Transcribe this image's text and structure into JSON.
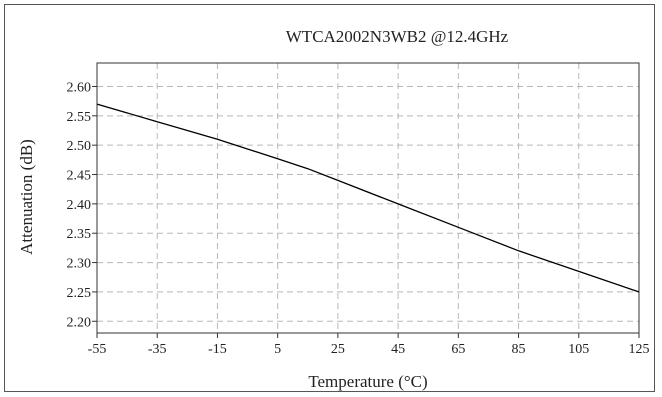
{
  "chart_data": {
    "type": "line",
    "title": "WTCA2002N3WB2 @12.4GHz",
    "xlabel": "Temperature (°C)",
    "ylabel": "Attenuation (dB)",
    "xlim": [
      -55,
      125
    ],
    "ylim": [
      2.18,
      2.64
    ],
    "xticks": [
      -55,
      -35,
      -15,
      5,
      25,
      45,
      65,
      85,
      105,
      125
    ],
    "xtick_labels": [
      "-55",
      "-35",
      "-15",
      "5",
      "25",
      "45",
      "65",
      "85",
      "105",
      "125"
    ],
    "yticks": [
      2.2,
      2.25,
      2.3,
      2.35,
      2.4,
      2.45,
      2.5,
      2.55,
      2.6
    ],
    "ytick_labels": [
      "2.20",
      "2.25",
      "2.30",
      "2.35",
      "2.40",
      "2.45",
      "2.50",
      "2.55",
      "2.60"
    ],
    "grid": true,
    "series": [
      {
        "x": [
          -55,
          -35,
          -15,
          5,
          15,
          25,
          45,
          65,
          85,
          105,
          125
        ],
        "y": [
          2.57,
          2.54,
          2.51,
          2.477,
          2.46,
          2.44,
          2.4,
          2.36,
          2.32,
          2.285,
          2.25
        ],
        "color": "#000000"
      }
    ]
  }
}
